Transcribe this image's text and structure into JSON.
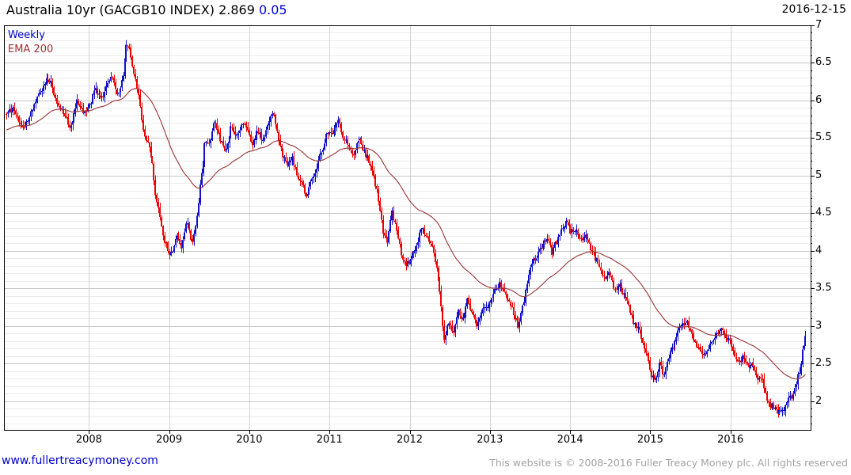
{
  "header": {
    "title": "Australia 10yr (GACGB10 INDEX)",
    "last_price": "2.869",
    "change": "0.05",
    "date": "2016-12-15"
  },
  "legend": {
    "series_label": "Weekly",
    "overlay_label": "EMA 200"
  },
  "footer": {
    "site_link": "www.fullertreacymoney.com",
    "copyright": "This website is © 2008-2016 Fuller Treacy Money plc. All rights reserved"
  },
  "colors": {
    "up_candle": "#1111cc",
    "down_candle": "#ee0000",
    "ema_line": "#993333",
    "grid_minor": "#ececec",
    "grid_major": "#c5c5c5",
    "grid_year": "#d2d2d2",
    "frame": "#000000",
    "change_text": "#0000dd",
    "link_text": "#0000cc",
    "copyright_text": "#a3a3a3"
  },
  "chart_data": {
    "type": "candlestick",
    "title": "Australia 10yr (GACGB10 INDEX)",
    "interval": "Weekly",
    "last": 2.869,
    "change": 0.05,
    "as_of_date": "2016-12-15",
    "overlay": {
      "name": "EMA 200",
      "smoothing_weeks": 55,
      "start_value": 5.6
    },
    "xlim": [
      2006.94,
      2017.0
    ],
    "ylim": [
      1.62,
      7.0
    ],
    "grid": {
      "y_minor_step": 0.1,
      "y_major_step": 0.5,
      "x_step_years": 1
    },
    "legend_position": "top-left",
    "y_ticks": [
      {
        "label": "7",
        "v": 7.0
      },
      {
        "label": "6.5",
        "v": 6.5
      },
      {
        "label": "6",
        "v": 6.0
      },
      {
        "label": "5.5",
        "v": 5.5
      },
      {
        "label": "5",
        "v": 5.0
      },
      {
        "label": "4.5",
        "v": 4.5
      },
      {
        "label": "4",
        "v": 4.0
      },
      {
        "label": "3.5",
        "v": 3.5
      },
      {
        "label": "3",
        "v": 3.0
      },
      {
        "label": "2.5",
        "v": 2.5
      },
      {
        "label": "2",
        "v": 2.0
      }
    ],
    "x_ticks": [
      {
        "label": "2008",
        "t": 2008
      },
      {
        "label": "2009",
        "t": 2009
      },
      {
        "label": "2010",
        "t": 2010
      },
      {
        "label": "2011",
        "t": 2011
      },
      {
        "label": "2012",
        "t": 2012
      },
      {
        "label": "2013",
        "t": 2013
      },
      {
        "label": "2014",
        "t": 2014
      },
      {
        "label": "2015",
        "t": 2015
      },
      {
        "label": "2016",
        "t": 2016
      }
    ],
    "series_start": 2006.97,
    "series_end": 2016.94,
    "bars_per_year": 52.18,
    "noise_seed": 11,
    "path_anchors": [
      [
        2006.97,
        5.82
      ],
      [
        2007.05,
        5.9
      ],
      [
        2007.13,
        5.72
      ],
      [
        2007.19,
        5.62
      ],
      [
        2007.3,
        5.9
      ],
      [
        2007.42,
        6.18
      ],
      [
        2007.47,
        6.28
      ],
      [
        2007.53,
        6.22
      ],
      [
        2007.6,
        5.98
      ],
      [
        2007.68,
        5.85
      ],
      [
        2007.76,
        5.62
      ],
      [
        2007.85,
        6.0
      ],
      [
        2007.93,
        5.82
      ],
      [
        2008.0,
        5.92
      ],
      [
        2008.08,
        6.15
      ],
      [
        2008.15,
        6.02
      ],
      [
        2008.23,
        6.2
      ],
      [
        2008.28,
        6.33
      ],
      [
        2008.37,
        6.06
      ],
      [
        2008.42,
        6.3
      ],
      [
        2008.47,
        6.8
      ],
      [
        2008.5,
        6.72
      ],
      [
        2008.56,
        6.35
      ],
      [
        2008.62,
        6.05
      ],
      [
        2008.68,
        5.6
      ],
      [
        2008.74,
        5.4
      ],
      [
        2008.79,
        5.2
      ],
      [
        2008.83,
        4.7
      ],
      [
        2008.88,
        4.5
      ],
      [
        2008.93,
        4.2
      ],
      [
        2008.98,
        4.0
      ],
      [
        2009.04,
        3.95
      ],
      [
        2009.1,
        4.22
      ],
      [
        2009.16,
        4.05
      ],
      [
        2009.22,
        4.45
      ],
      [
        2009.28,
        4.12
      ],
      [
        2009.33,
        4.3
      ],
      [
        2009.39,
        4.9
      ],
      [
        2009.45,
        5.5
      ],
      [
        2009.51,
        5.42
      ],
      [
        2009.57,
        5.75
      ],
      [
        2009.63,
        5.5
      ],
      [
        2009.7,
        5.28
      ],
      [
        2009.77,
        5.65
      ],
      [
        2009.84,
        5.52
      ],
      [
        2009.91,
        5.72
      ],
      [
        2009.98,
        5.6
      ],
      [
        2010.03,
        5.42
      ],
      [
        2010.1,
        5.6
      ],
      [
        2010.17,
        5.48
      ],
      [
        2010.24,
        5.72
      ],
      [
        2010.29,
        5.85
      ],
      [
        2010.35,
        5.55
      ],
      [
        2010.42,
        5.28
      ],
      [
        2010.48,
        5.15
      ],
      [
        2010.53,
        5.28
      ],
      [
        2010.59,
        5.02
      ],
      [
        2010.66,
        4.88
      ],
      [
        2010.71,
        4.7
      ],
      [
        2010.77,
        4.95
      ],
      [
        2010.83,
        5.08
      ],
      [
        2010.9,
        5.32
      ],
      [
        2010.97,
        5.58
      ],
      [
        2011.04,
        5.6
      ],
      [
        2011.11,
        5.74
      ],
      [
        2011.17,
        5.52
      ],
      [
        2011.24,
        5.42
      ],
      [
        2011.3,
        5.28
      ],
      [
        2011.37,
        5.52
      ],
      [
        2011.43,
        5.32
      ],
      [
        2011.49,
        5.22
      ],
      [
        2011.55,
        4.98
      ],
      [
        2011.61,
        4.68
      ],
      [
        2011.66,
        4.28
      ],
      [
        2011.72,
        4.12
      ],
      [
        2011.78,
        4.5
      ],
      [
        2011.84,
        4.28
      ],
      [
        2011.9,
        3.92
      ],
      [
        2011.96,
        3.8
      ],
      [
        2012.03,
        3.96
      ],
      [
        2012.09,
        4.1
      ],
      [
        2012.15,
        4.3
      ],
      [
        2012.21,
        4.22
      ],
      [
        2012.27,
        4.08
      ],
      [
        2012.32,
        3.88
      ],
      [
        2012.38,
        3.42
      ],
      [
        2012.43,
        2.82
      ],
      [
        2012.49,
        3.05
      ],
      [
        2012.54,
        2.92
      ],
      [
        2012.6,
        3.2
      ],
      [
        2012.66,
        3.08
      ],
      [
        2012.72,
        3.35
      ],
      [
        2012.78,
        3.18
      ],
      [
        2012.84,
        3.02
      ],
      [
        2012.9,
        3.2
      ],
      [
        2012.96,
        3.26
      ],
      [
        2013.02,
        3.38
      ],
      [
        2013.08,
        3.52
      ],
      [
        2013.13,
        3.56
      ],
      [
        2013.19,
        3.44
      ],
      [
        2013.25,
        3.3
      ],
      [
        2013.31,
        3.12
      ],
      [
        2013.36,
        2.98
      ],
      [
        2013.42,
        3.3
      ],
      [
        2013.48,
        3.68
      ],
      [
        2013.54,
        3.88
      ],
      [
        2013.6,
        3.95
      ],
      [
        2013.66,
        4.08
      ],
      [
        2013.72,
        4.18
      ],
      [
        2013.77,
        3.98
      ],
      [
        2013.83,
        4.12
      ],
      [
        2013.89,
        4.28
      ],
      [
        2013.95,
        4.4
      ],
      [
        2014.01,
        4.24
      ],
      [
        2014.07,
        4.3
      ],
      [
        2014.13,
        4.12
      ],
      [
        2014.19,
        4.2
      ],
      [
        2014.25,
        4.04
      ],
      [
        2014.31,
        3.9
      ],
      [
        2014.37,
        3.78
      ],
      [
        2014.43,
        3.64
      ],
      [
        2014.49,
        3.72
      ],
      [
        2014.55,
        3.48
      ],
      [
        2014.6,
        3.56
      ],
      [
        2014.66,
        3.44
      ],
      [
        2014.72,
        3.3
      ],
      [
        2014.78,
        3.08
      ],
      [
        2014.84,
        3.0
      ],
      [
        2014.9,
        2.82
      ],
      [
        2014.96,
        2.58
      ],
      [
        2015.02,
        2.34
      ],
      [
        2015.07,
        2.27
      ],
      [
        2015.12,
        2.5
      ],
      [
        2015.17,
        2.33
      ],
      [
        2015.22,
        2.55
      ],
      [
        2015.28,
        2.72
      ],
      [
        2015.34,
        2.92
      ],
      [
        2015.4,
        3.0
      ],
      [
        2015.45,
        3.06
      ],
      [
        2015.51,
        2.88
      ],
      [
        2015.57,
        2.74
      ],
      [
        2015.63,
        2.7
      ],
      [
        2015.69,
        2.6
      ],
      [
        2015.75,
        2.74
      ],
      [
        2015.81,
        2.86
      ],
      [
        2015.87,
        2.96
      ],
      [
        2015.93,
        2.88
      ],
      [
        2015.99,
        2.8
      ],
      [
        2016.05,
        2.62
      ],
      [
        2016.11,
        2.5
      ],
      [
        2016.16,
        2.6
      ],
      [
        2016.22,
        2.46
      ],
      [
        2016.28,
        2.52
      ],
      [
        2016.34,
        2.26
      ],
      [
        2016.4,
        2.3
      ],
      [
        2016.46,
        2.0
      ],
      [
        2016.52,
        1.93
      ],
      [
        2016.58,
        1.86
      ],
      [
        2016.64,
        1.92
      ],
      [
        2016.68,
        1.88
      ],
      [
        2016.72,
        2.08
      ],
      [
        2016.76,
        2.02
      ],
      [
        2016.81,
        2.2
      ],
      [
        2016.86,
        2.42
      ],
      [
        2016.9,
        2.68
      ],
      [
        2016.94,
        2.87
      ]
    ]
  }
}
